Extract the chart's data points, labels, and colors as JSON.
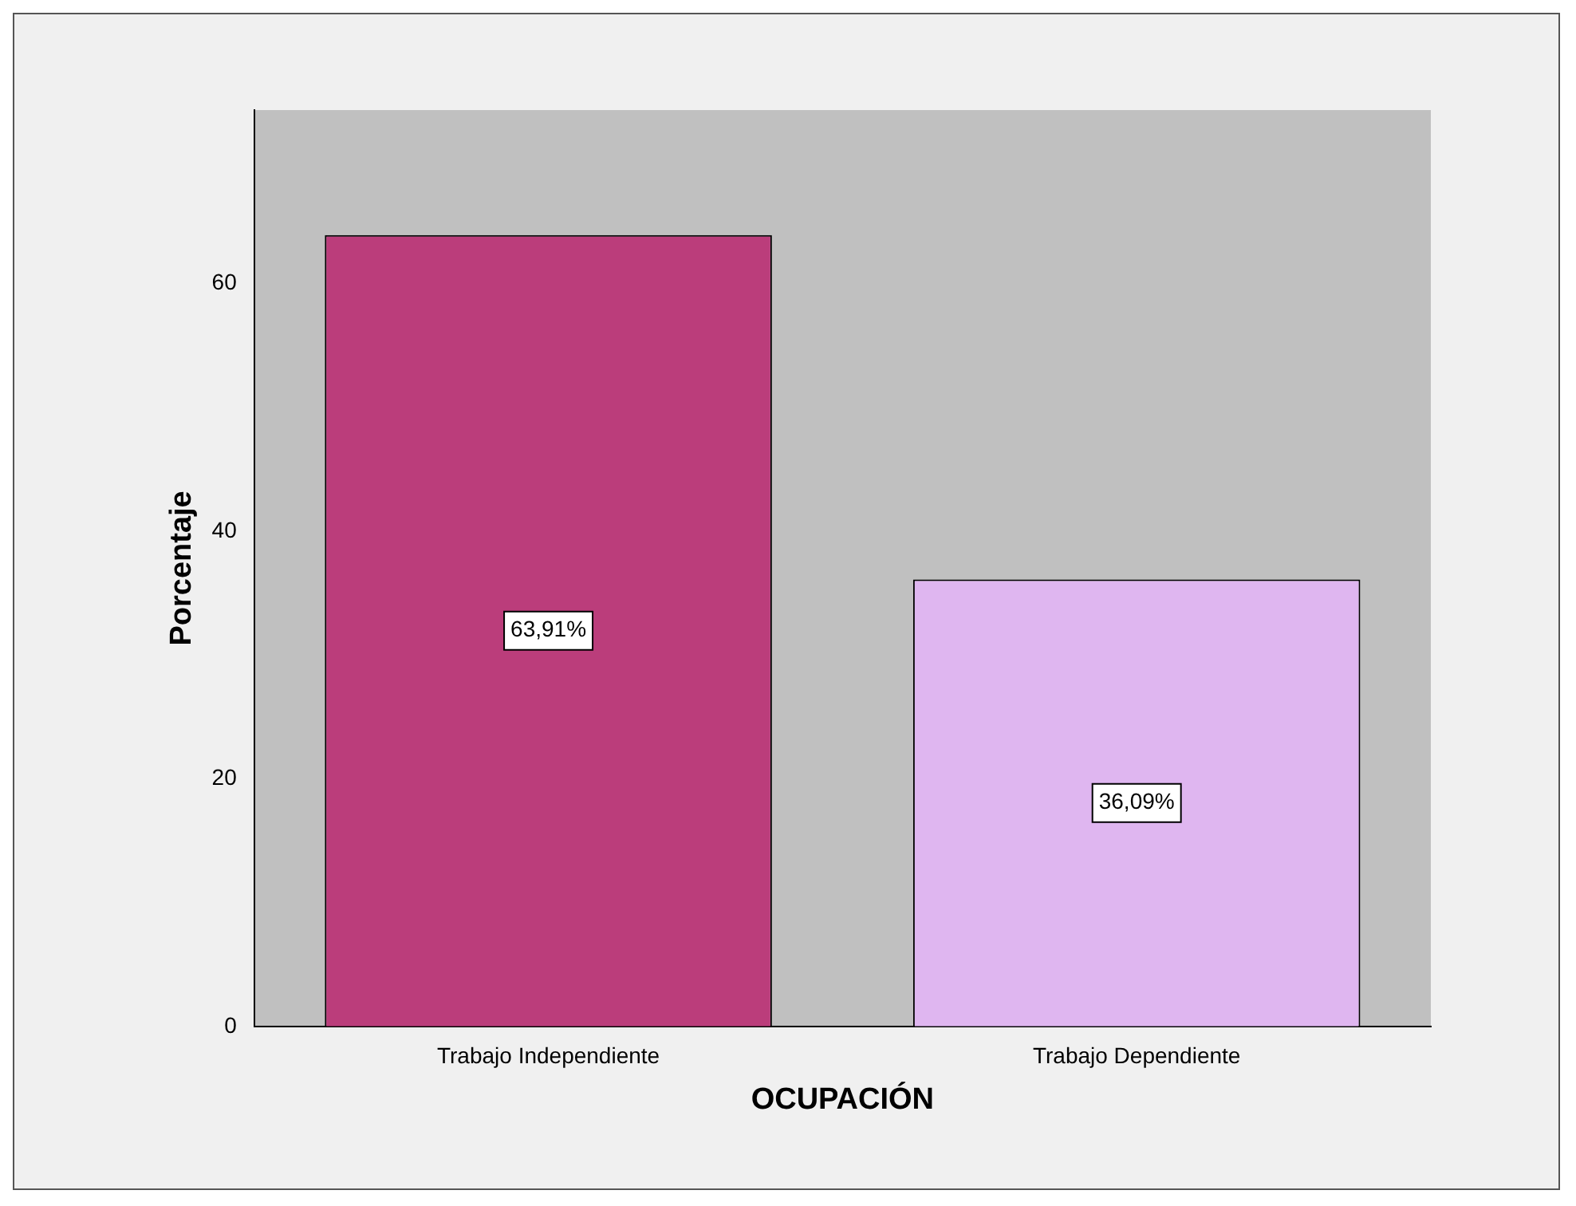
{
  "chart_data": {
    "type": "bar",
    "xlabel": "OCUPACIÓN",
    "ylabel": "Porcentaje",
    "categories": [
      "Trabajo Independiente",
      "Trabajo Dependiente"
    ],
    "values": [
      63.91,
      36.09
    ],
    "colors": [
      "#bb3d7b",
      "#dfb6f0"
    ],
    "value_labels": [
      "63,91%",
      "36,09%"
    ],
    "ylim": [
      0,
      74
    ],
    "yticks": [
      0,
      20,
      40,
      60
    ],
    "grid": false,
    "legend": false
  }
}
